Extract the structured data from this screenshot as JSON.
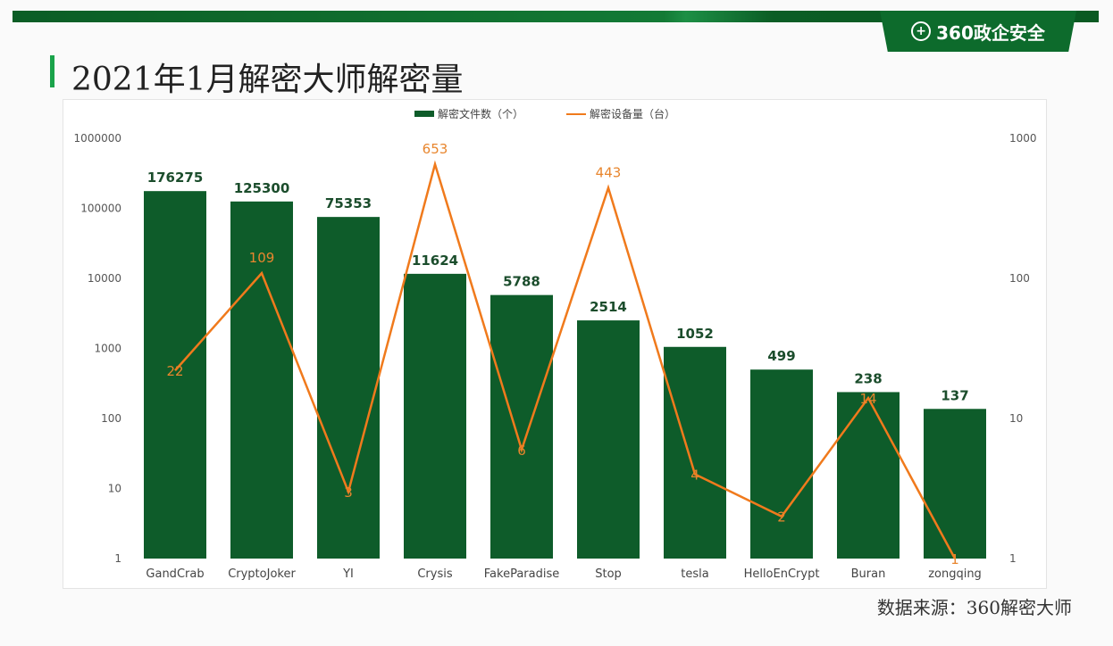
{
  "header": {
    "logo_text": "360政企安全",
    "logo_icon": "plus-circle-icon",
    "title": "2021年1月解密大师解密量"
  },
  "source": "数据来源：360解密大师",
  "colors": {
    "bar": "#0e5c2a",
    "line": "#f07a1c"
  },
  "chart_data": {
    "type": "bar+line",
    "title": "2021年1月解密大师解密量",
    "categories": [
      "GandCrab",
      "CryptoJoker",
      "YI",
      "Crysis",
      "FakeParadise",
      "Stop",
      "tesla",
      "HelloEnCrypt",
      "Buran",
      "zongqing"
    ],
    "series": [
      {
        "name": "解密文件数（个）",
        "type": "bar",
        "axis": "left",
        "values": [
          176275,
          125300,
          75353,
          11624,
          5788,
          2514,
          1052,
          499,
          238,
          137
        ]
      },
      {
        "name": "解密设备量（台）",
        "type": "line",
        "axis": "right",
        "values": [
          22,
          109,
          3,
          653,
          6,
          443,
          4,
          2,
          14,
          1
        ]
      }
    ],
    "left_axis": {
      "scale": "log",
      "ylim": [
        1,
        1000000
      ],
      "ticks": [
        "1",
        "10",
        "100",
        "1000",
        "10000",
        "100000",
        "1000000"
      ]
    },
    "right_axis": {
      "scale": "log",
      "ylim": [
        1,
        1000
      ],
      "ticks": [
        "1",
        "10",
        "100",
        "1000"
      ]
    },
    "legend": "top-center"
  }
}
